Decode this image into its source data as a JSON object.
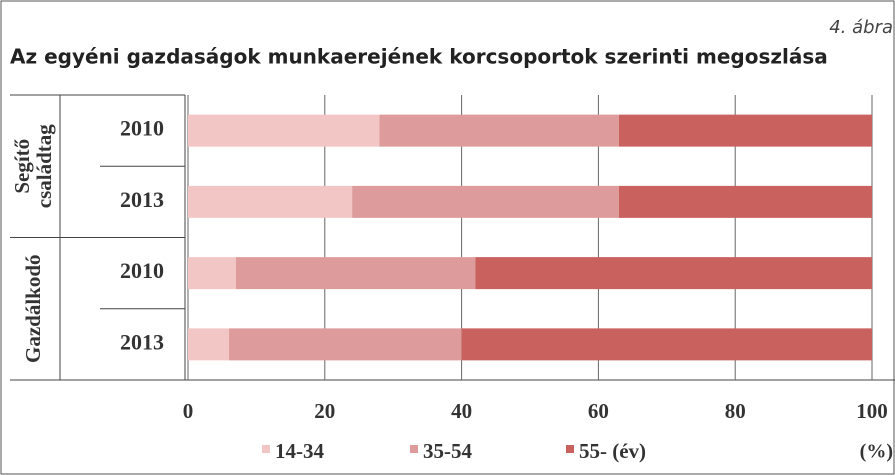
{
  "chart_data": {
    "type": "stacked_bar_horizontal",
    "figure_label": "4. ábra",
    "title": "Az egyéni gazdaságok munkaerejének korcsoportok szerinti megoszlása",
    "groups": [
      {
        "lines": [
          "Segítő",
          "családtag"
        ]
      },
      {
        "lines": [
          "Gazdálkodó"
        ]
      }
    ],
    "categories": [
      "2010",
      "2013",
      "2010",
      "2013"
    ],
    "series": [
      {
        "name": "14-34",
        "color": "#f2c6c5",
        "values": [
          28,
          24,
          7,
          6
        ]
      },
      {
        "name": "35-54",
        "color": "#dd9c9b",
        "values": [
          35,
          39,
          35,
          34
        ]
      },
      {
        "name": "55- (év)",
        "color": "#c9625e",
        "values": [
          37,
          37,
          58,
          60
        ]
      }
    ],
    "xlim": [
      0,
      100
    ],
    "xticks": [
      0,
      20,
      40,
      60,
      80,
      100
    ],
    "x_unit": "(%)",
    "grid": true
  }
}
